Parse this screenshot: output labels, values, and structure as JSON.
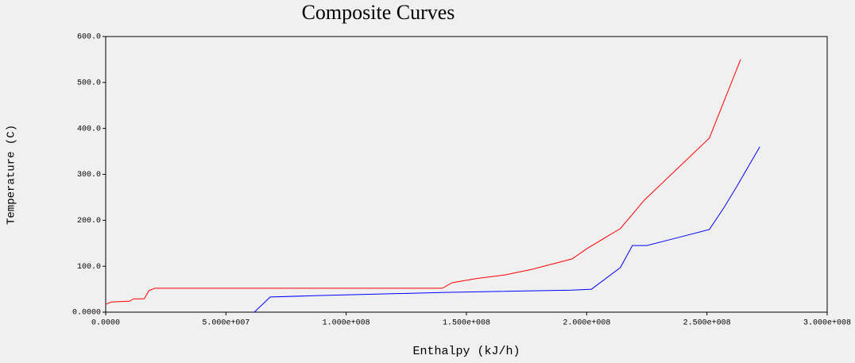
{
  "chart_data": {
    "type": "line",
    "title": "Composite Curves",
    "x_label": "Enthalpy (kJ/h)",
    "y_label": "Temperature (C)",
    "xlim": [
      0,
      300000000
    ],
    "ylim": [
      0,
      600
    ],
    "xticks": [
      {
        "value": 0,
        "label": "0.0000"
      },
      {
        "value": 50000000,
        "label": "5.000e+007"
      },
      {
        "value": 100000000,
        "label": "1.000e+008"
      },
      {
        "value": 150000000,
        "label": "1.500e+008"
      },
      {
        "value": 200000000,
        "label": "2.000e+008"
      },
      {
        "value": 250000000,
        "label": "2.500e+008"
      },
      {
        "value": 300000000,
        "label": "3.000e+008"
      }
    ],
    "yticks": [
      {
        "value": 0,
        "label": "0.0000"
      },
      {
        "value": 100,
        "label": "100.0"
      },
      {
        "value": 200,
        "label": "200.0"
      },
      {
        "value": 300,
        "label": "300.0"
      },
      {
        "value": 400,
        "label": "400.0"
      },
      {
        "value": 500,
        "label": "500.0"
      },
      {
        "value": 600,
        "label": "600.0"
      }
    ],
    "series": [
      {
        "color": "#ff0000",
        "x": [
          0,
          2300000,
          10000000,
          11500000,
          16000000,
          18000000,
          20500000,
          140000000,
          144000000,
          154000000,
          166000000,
          177000000,
          194000000,
          200000000,
          214000000,
          224000000,
          251000000,
          264000000
        ],
        "values": [
          17,
          22,
          24,
          29,
          29,
          47,
          52,
          52,
          64,
          73,
          81,
          93,
          116,
          138,
          182,
          244,
          379,
          550
        ]
      },
      {
        "color": "#0000ff",
        "x": [
          61800000,
          68400000,
          88000000,
          141000000,
          194000000,
          202000000,
          214000000,
          219000000,
          225000000,
          234000000,
          251000000,
          257000000,
          262000000,
          272000000
        ],
        "values": [
          0,
          33,
          36,
          43,
          48,
          50,
          97,
          145,
          145,
          157,
          180,
          227,
          270,
          360
        ]
      }
    ]
  }
}
